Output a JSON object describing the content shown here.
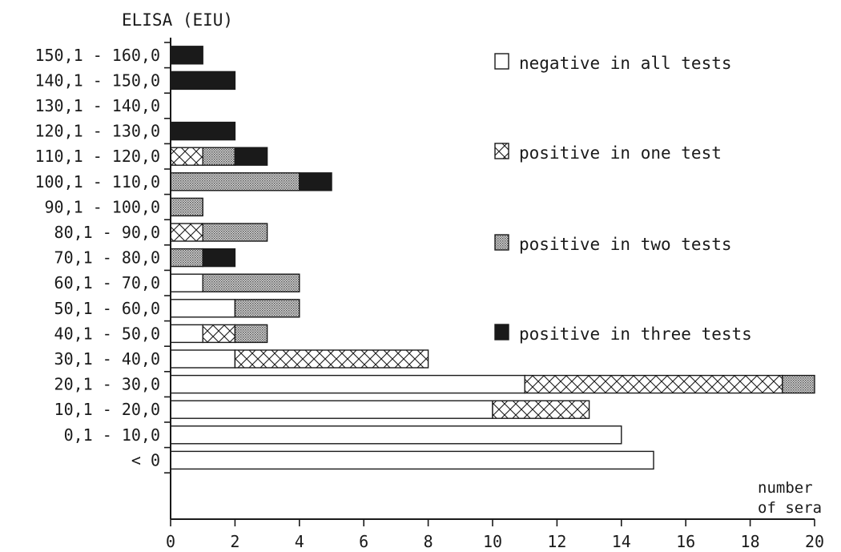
{
  "chart_data": {
    "type": "bar",
    "orientation": "horizontal",
    "stacked": true,
    "title": "ELISA (EIU)",
    "xlabel": "number of sera",
    "xlabel_lines": [
      "number",
      "of sera"
    ],
    "xlim": [
      0,
      20
    ],
    "xticks": [
      "0",
      "2",
      "4",
      "6",
      "8",
      "10",
      "12",
      "14",
      "16",
      "18",
      "20"
    ],
    "categories": [
      "< 0",
      "0,1 - 10,0",
      "10,1 - 20,0",
      "20,1 - 30,0",
      "30,1 - 40,0",
      "40,1 - 50,0",
      "50,1 - 60,0",
      "60,1 - 70,0",
      "70,1 - 80,0",
      "80,1 - 90,0",
      "90,1 - 100,0",
      "100,1 - 110,0",
      "110,1 - 120,0",
      "120,1 - 130,0",
      "130,1 - 140,0",
      "140,1 - 150,0",
      "150,1 - 160,0"
    ],
    "series": [
      {
        "name": "negative in all tests",
        "pattern": "open",
        "values": [
          15,
          14,
          10,
          11,
          2,
          1,
          2,
          1,
          0,
          0,
          0,
          0,
          0,
          0,
          0,
          0,
          0
        ]
      },
      {
        "name": "positive in one test",
        "pattern": "crosshatch",
        "values": [
          0,
          0,
          3,
          8,
          6,
          1,
          0,
          0,
          0,
          1,
          0,
          0,
          1,
          0,
          0,
          0,
          0
        ]
      },
      {
        "name": "positive in two tests",
        "pattern": "stipple",
        "values": [
          0,
          0,
          0,
          1,
          0,
          1,
          2,
          3,
          1,
          2,
          1,
          4,
          1,
          0,
          0,
          0,
          0
        ]
      },
      {
        "name": "positive in three tests",
        "pattern": "solid",
        "values": [
          0,
          0,
          0,
          0,
          0,
          0,
          0,
          0,
          1,
          0,
          0,
          1,
          1,
          2,
          0,
          2,
          1
        ]
      }
    ],
    "legend_position": "right",
    "grid": false,
    "colors": {
      "ink": "#1a1a1a",
      "background": "#ffffff",
      "stipple": "#9a9a9a"
    }
  }
}
